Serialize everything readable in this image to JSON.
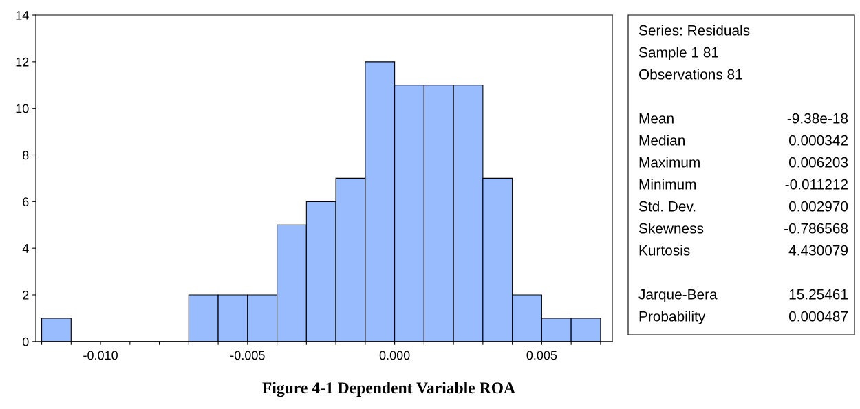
{
  "chart_data": {
    "type": "histogram",
    "title": "Figure 4-1 Dependent Variable ROA",
    "bins": [
      -0.012,
      -0.011,
      -0.01,
      -0.009,
      -0.008,
      -0.007,
      -0.006,
      -0.005,
      -0.004,
      -0.003,
      -0.002,
      -0.001,
      0.0,
      0.001,
      0.002,
      0.003,
      0.004,
      0.005,
      0.006,
      0.007
    ],
    "values": [
      1,
      0,
      0,
      0,
      0,
      2,
      2,
      2,
      5,
      6,
      7,
      12,
      11,
      11,
      11,
      7,
      2,
      1,
      1
    ],
    "color": "#99bbff",
    "xlim": [
      -0.0122,
      0.0074
    ],
    "xticks": [
      {
        "value": -0.012,
        "label": null
      },
      {
        "value": -0.011,
        "label": null
      },
      {
        "value": -0.01,
        "label": "-0.010"
      },
      {
        "value": -0.009,
        "label": null
      },
      {
        "value": -0.008,
        "label": null
      },
      {
        "value": -0.007,
        "label": null
      },
      {
        "value": -0.006,
        "label": null
      },
      {
        "value": -0.005,
        "label": "-0.005"
      },
      {
        "value": -0.004,
        "label": null
      },
      {
        "value": -0.003,
        "label": null
      },
      {
        "value": -0.002,
        "label": null
      },
      {
        "value": -0.001,
        "label": null
      },
      {
        "value": 0.0,
        "label": "0.000"
      },
      {
        "value": 0.001,
        "label": null
      },
      {
        "value": 0.002,
        "label": null
      },
      {
        "value": 0.003,
        "label": null
      },
      {
        "value": 0.004,
        "label": null
      },
      {
        "value": 0.005,
        "label": "0.005"
      },
      {
        "value": 0.006,
        "label": null
      },
      {
        "value": 0.007,
        "label": null
      }
    ],
    "ylim": [
      0,
      14
    ],
    "yticks": [
      0,
      2,
      4,
      6,
      8,
      10,
      12,
      14
    ],
    "grid": false,
    "legend": false,
    "annotations": [
      "Series: Residuals",
      "Sample 1 81",
      "Observations 81",
      "Mean",
      "-9.38e-18",
      "Median",
      "0.000342",
      "Maximum",
      "0.006203",
      "Minimum",
      "-0.011212",
      "Std. Dev.",
      "0.002970",
      "Skewness",
      "-0.786568",
      "Kurtosis",
      "4.430079",
      "Jarque-Bera",
      "15.25461",
      "Probability",
      "0.000487"
    ]
  }
}
